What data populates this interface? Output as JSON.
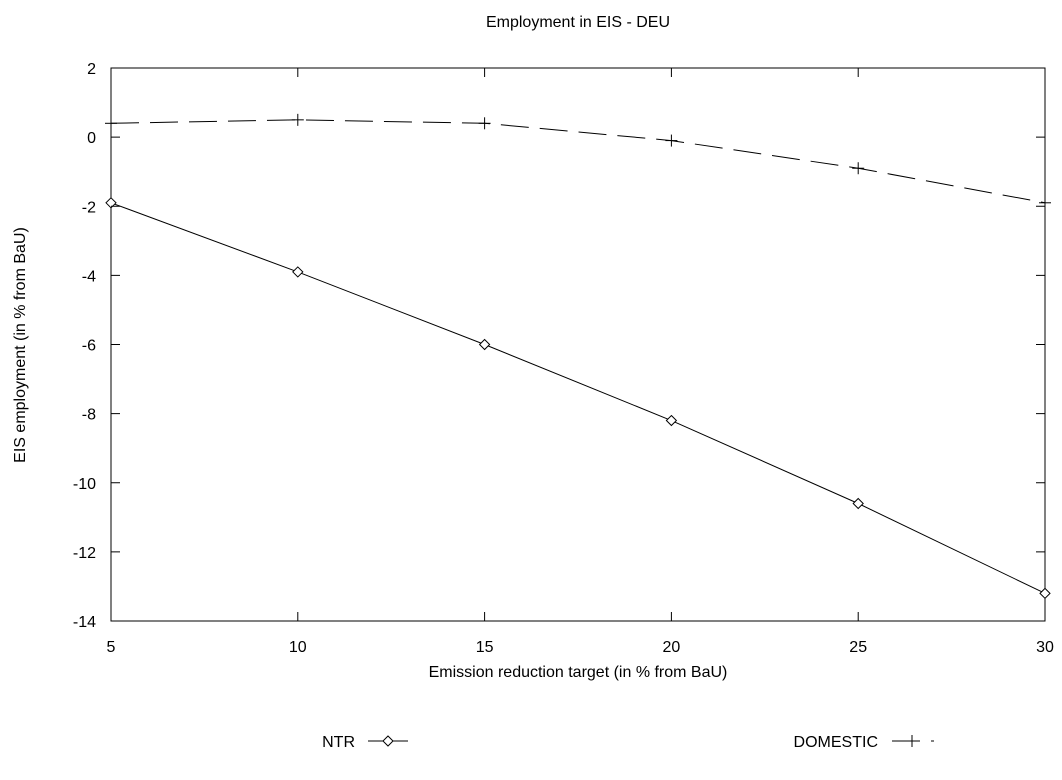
{
  "chart_data": {
    "type": "line",
    "title": "Employment in EIS - DEU",
    "xlabel": "Emission reduction target (in % from BaU)",
    "ylabel": "EIS employment (in % from BaU)",
    "x": [
      5,
      10,
      15,
      20,
      25,
      30
    ],
    "xlim": [
      5,
      30
    ],
    "ylim": [
      -14,
      2
    ],
    "xticks": [
      "5",
      "10",
      "15",
      "20",
      "25",
      "30"
    ],
    "yticks": [
      "2",
      "0",
      "-2",
      "-4",
      "-6",
      "-8",
      "-10",
      "-12",
      "-14"
    ],
    "grid": false,
    "legend_position": "bottom",
    "series": [
      {
        "name": "NTR",
        "values": [
          -1.9,
          -3.9,
          -6.0,
          -8.2,
          -10.6,
          -13.2
        ],
        "marker": "diamond",
        "line": "solid",
        "color": "#000000"
      },
      {
        "name": "DOMESTIC",
        "values": [
          0.4,
          0.5,
          0.4,
          -0.1,
          -0.9,
          -1.9
        ],
        "marker": "plus",
        "line": "dashed",
        "color": "#000000"
      }
    ]
  }
}
